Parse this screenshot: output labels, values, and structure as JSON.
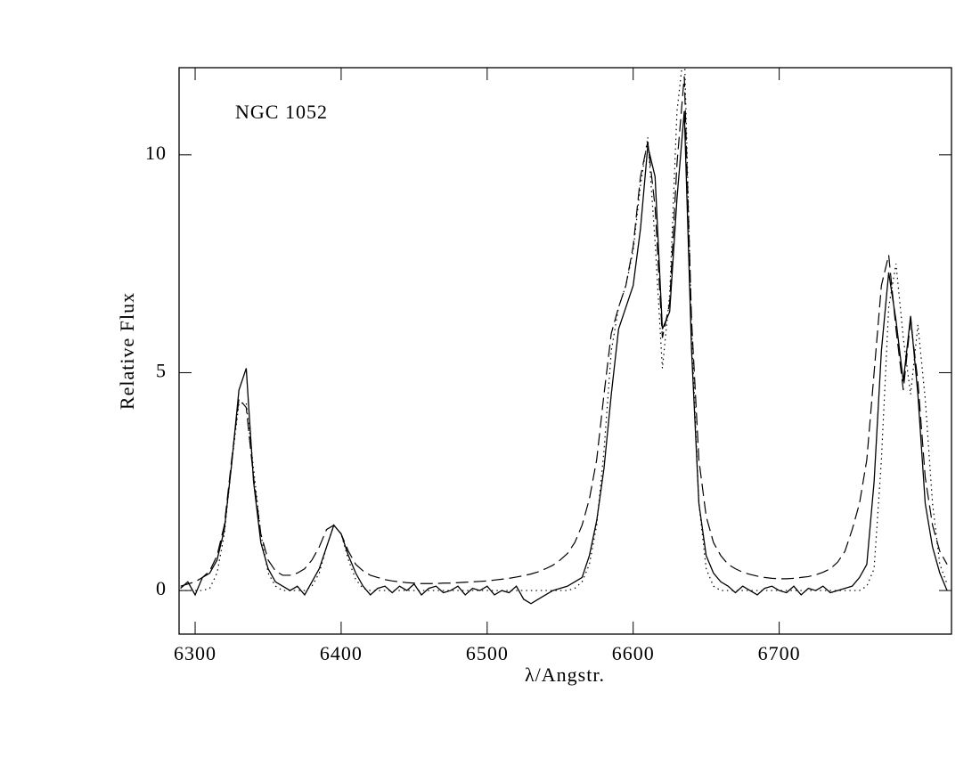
{
  "chart_data": {
    "type": "line",
    "annotation": "NGC  1052",
    "xlabel": "λ/Angstr.",
    "ylabel": "Relative Flux",
    "x": [
      6290,
      6295,
      6300,
      6305,
      6310,
      6315,
      6320,
      6325,
      6330,
      6335,
      6340,
      6345,
      6350,
      6355,
      6360,
      6365,
      6370,
      6375,
      6380,
      6385,
      6390,
      6395,
      6400,
      6405,
      6410,
      6415,
      6420,
      6425,
      6430,
      6435,
      6440,
      6445,
      6450,
      6455,
      6460,
      6465,
      6470,
      6475,
      6480,
      6485,
      6490,
      6495,
      6500,
      6505,
      6510,
      6515,
      6520,
      6525,
      6530,
      6535,
      6540,
      6545,
      6550,
      6555,
      6560,
      6565,
      6570,
      6575,
      6580,
      6585,
      6590,
      6595,
      6600,
      6605,
      6610,
      6615,
      6620,
      6625,
      6630,
      6635,
      6640,
      6645,
      6650,
      6655,
      6660,
      6665,
      6670,
      6675,
      6680,
      6685,
      6690,
      6695,
      6700,
      6705,
      6710,
      6715,
      6720,
      6725,
      6730,
      6735,
      6740,
      6745,
      6750,
      6755,
      6760,
      6765,
      6770,
      6775,
      6780,
      6785,
      6790,
      6795,
      6800,
      6805,
      6810,
      6815
    ],
    "series": [
      {
        "color": "#000000",
        "style": "solid",
        "values": [
          0.05,
          0.2,
          -0.1,
          0.3,
          0.4,
          0.7,
          1.4,
          2.9,
          4.6,
          5.1,
          2.5,
          1.1,
          0.5,
          0.2,
          0.1,
          0.0,
          0.1,
          -0.1,
          0.2,
          0.5,
          1.0,
          1.5,
          1.3,
          0.8,
          0.4,
          0.1,
          -0.1,
          0.05,
          0.1,
          -0.05,
          0.1,
          0.0,
          0.15,
          -0.1,
          0.05,
          0.1,
          -0.05,
          0.0,
          0.1,
          -0.1,
          0.05,
          0.0,
          0.1,
          -0.1,
          0.0,
          -0.05,
          0.1,
          -0.2,
          -0.3,
          -0.2,
          -0.1,
          0.0,
          0.05,
          0.1,
          0.2,
          0.3,
          0.8,
          1.6,
          2.8,
          4.5,
          6.0,
          6.5,
          7.0,
          8.3,
          10.2,
          9.5,
          6.0,
          6.4,
          9.0,
          11.0,
          5.5,
          2.0,
          0.8,
          0.4,
          0.2,
          0.1,
          -0.05,
          0.1,
          0.0,
          -0.1,
          0.05,
          0.1,
          0.0,
          -0.05,
          0.1,
          -0.1,
          0.05,
          0.0,
          0.1,
          -0.05,
          0.0,
          0.05,
          0.1,
          0.3,
          0.6,
          2.5,
          5.5,
          7.3,
          6.2,
          4.8,
          6.3,
          4.5,
          2.0,
          1.0,
          0.4,
          0.0
        ]
      },
      {
        "color": "#000000",
        "style": "dashed",
        "values": [
          0.1,
          0.15,
          0.2,
          0.3,
          0.45,
          0.8,
          1.5,
          3.0,
          4.4,
          4.2,
          2.6,
          1.3,
          0.7,
          0.45,
          0.35,
          0.35,
          0.4,
          0.5,
          0.7,
          1.0,
          1.4,
          1.5,
          1.3,
          0.9,
          0.6,
          0.45,
          0.35,
          0.3,
          0.25,
          0.22,
          0.2,
          0.18,
          0.17,
          0.16,
          0.16,
          0.16,
          0.17,
          0.17,
          0.18,
          0.19,
          0.2,
          0.21,
          0.22,
          0.24,
          0.26,
          0.28,
          0.31,
          0.34,
          0.38,
          0.43,
          0.5,
          0.58,
          0.7,
          0.85,
          1.1,
          1.5,
          2.1,
          3.0,
          4.5,
          5.9,
          6.5,
          7.0,
          7.9,
          9.5,
          10.3,
          8.8,
          5.8,
          6.6,
          9.8,
          11.8,
          6.2,
          3.0,
          1.7,
          1.1,
          0.8,
          0.6,
          0.5,
          0.42,
          0.37,
          0.33,
          0.3,
          0.28,
          0.27,
          0.27,
          0.28,
          0.3,
          0.32,
          0.36,
          0.42,
          0.5,
          0.65,
          0.9,
          1.4,
          2.0,
          3.0,
          5.0,
          7.0,
          7.7,
          6.0,
          4.6,
          6.2,
          4.8,
          2.6,
          1.5,
          0.9,
          0.6
        ]
      },
      {
        "color": "#000000",
        "style": "dotted",
        "values": [
          0,
          0,
          0,
          0,
          0.05,
          0.4,
          1.3,
          2.9,
          4.3,
          4.3,
          2.8,
          1.3,
          0.4,
          0.1,
          0,
          0,
          0,
          0,
          0.1,
          0.4,
          1.0,
          1.5,
          1.3,
          0.7,
          0.25,
          0.05,
          0,
          0,
          0,
          0,
          0,
          0,
          0,
          0,
          0,
          0,
          0,
          0,
          0,
          0,
          0,
          0,
          0,
          0,
          0,
          0,
          0,
          0,
          0,
          0,
          0,
          0,
          0,
          0,
          0.05,
          0.2,
          0.6,
          1.5,
          3.2,
          5.5,
          6.5,
          7.0,
          7.8,
          9.3,
          10.4,
          8.0,
          5.1,
          6.8,
          11.0,
          12.5,
          6.0,
          2.0,
          0.5,
          0.1,
          0,
          0,
          0,
          0,
          0,
          0,
          0,
          0,
          0,
          0,
          0,
          0,
          0,
          0,
          0,
          0,
          0,
          0,
          0,
          0,
          0.1,
          0.5,
          3.0,
          6.5,
          7.5,
          5.8,
          4.5,
          6.1,
          4.4,
          2.0,
          0.6,
          0.15
        ]
      }
    ],
    "xlim": [
      6289,
      6818
    ],
    "xticks": [
      6300,
      6400,
      6500,
      6600,
      6700
    ],
    "ylim": [
      -1,
      12
    ],
    "yticks": [
      0,
      5,
      10
    ]
  }
}
